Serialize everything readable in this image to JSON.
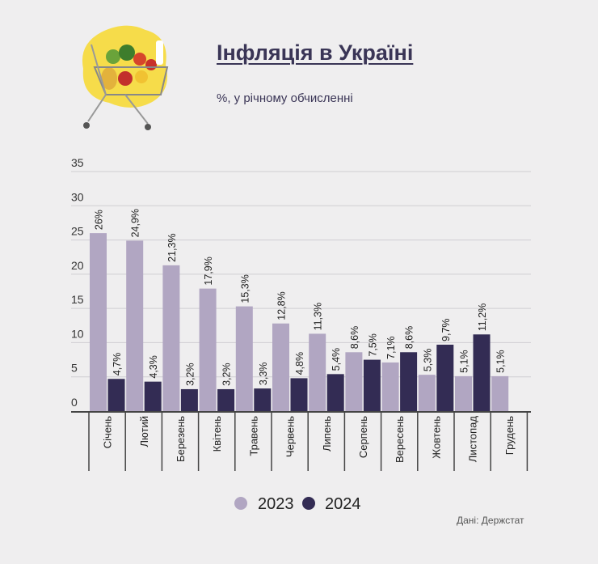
{
  "title": "Інфляція в Україні",
  "subtitle": "%, у річному обчисленні",
  "source": "Дані: Держстат",
  "logo_icon": "shopping-cart-with-groceries-icon",
  "chart_data": {
    "type": "bar",
    "categories": [
      "Січень",
      "Лютий",
      "Березень",
      "Квітень",
      "Травень",
      "Червень",
      "Липень",
      "Серпень",
      "Вересень",
      "Жовтень",
      "Листопад",
      "Грудень"
    ],
    "series": [
      {
        "name": "2023",
        "color": "#b1a6c2",
        "values": [
          26,
          24.9,
          21.3,
          17.9,
          15.3,
          12.8,
          11.3,
          8.6,
          7.1,
          5.3,
          5.1,
          5.1
        ],
        "labels": [
          "26%",
          "24,9%",
          "21,3%",
          "17,9%",
          "15,3%",
          "12,8%",
          "11,3%",
          "8,6%",
          "7,1%",
          "5,3%",
          "5,1%",
          "5,1%"
        ]
      },
      {
        "name": "2024",
        "color": "#332c54",
        "values": [
          4.7,
          4.3,
          3.2,
          3.2,
          3.3,
          4.8,
          5.4,
          7.5,
          8.6,
          9.7,
          11.2,
          null
        ],
        "labels": [
          "4,7%",
          "4,3%",
          "3,2%",
          "3,2%",
          "3,3%",
          "4,8%",
          "5,4%",
          "7,5%",
          "8,6%",
          "9,7%",
          "11,2%",
          ""
        ]
      }
    ],
    "ylim": [
      0,
      35
    ],
    "yticks": [
      "0",
      "5",
      "10",
      "15",
      "20",
      "25",
      "30",
      "35"
    ],
    "grid": true,
    "legend": "bottom-center"
  }
}
